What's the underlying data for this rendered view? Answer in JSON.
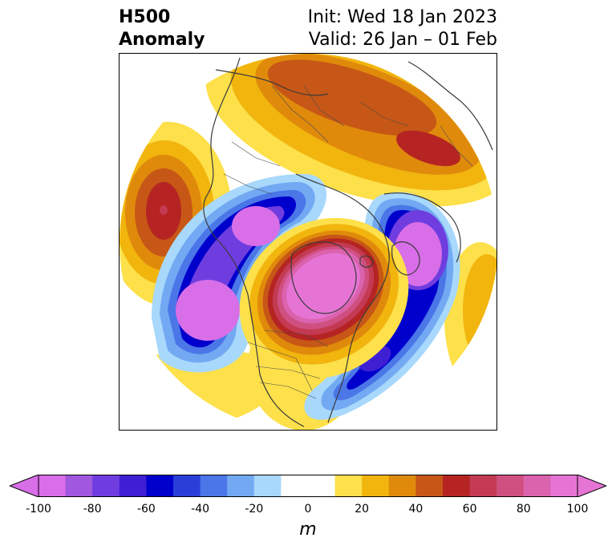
{
  "title": {
    "variable": "H500",
    "subtitle": "Anomaly",
    "init": "Init: Wed 18 Jan 2023",
    "valid": "Valid: 26 Jan – 01 Feb"
  },
  "colorbar": {
    "unit": "m",
    "ticks": [
      "-100",
      "-80",
      "-60",
      "-40",
      "-20",
      "0",
      "20",
      "40",
      "60",
      "80",
      "100"
    ],
    "bin_colors": [
      "#d86ee8",
      "#a257df",
      "#6f3ddf",
      "#3f1fd4",
      "#0000cc",
      "#2a3fd8",
      "#4a76e8",
      "#72a9f2",
      "#a8d8fb",
      "#ffffff",
      "#ffffff",
      "#fde04a",
      "#f1b50e",
      "#e08a0c",
      "#c75716",
      "#b52422",
      "#c33a52",
      "#cf5080",
      "#db62ad",
      "#e674d4"
    ],
    "extend_low_color": "#d86ee8",
    "extend_high_color": "#e674d4"
  },
  "map": {
    "projection": "polar stereographic",
    "features": [
      "H500 anomaly contours",
      "coastlines",
      "country borders",
      "state/province borders"
    ]
  }
}
